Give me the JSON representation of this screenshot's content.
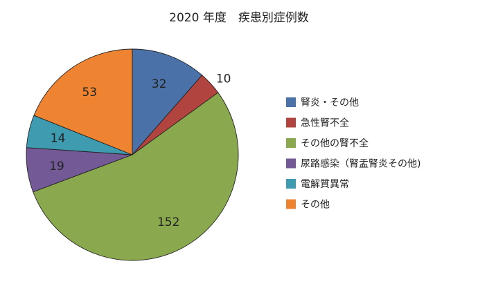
{
  "chart_data": {
    "type": "pie",
    "title": "2020 年度　疾患別症例数",
    "categories": [
      "腎炎・その他",
      "急性腎不全",
      "その他の腎不全",
      "尿路感染（腎盂腎炎その他)",
      "電解質異常",
      "その他"
    ],
    "values": [
      32,
      10,
      152,
      19,
      14,
      53
    ],
    "colors": [
      "#4a72a8",
      "#b1443f",
      "#8aa84e",
      "#735a96",
      "#3e9bb0",
      "#ee8331"
    ],
    "legend_position": "right",
    "data_labels": true
  }
}
